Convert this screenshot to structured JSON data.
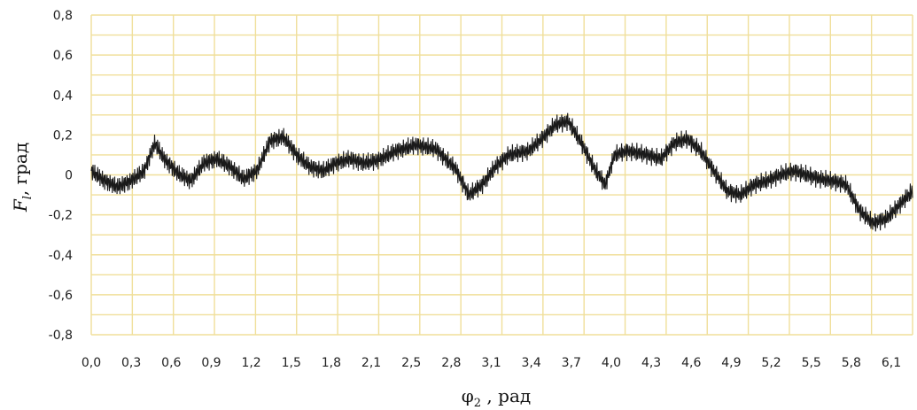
{
  "chart_data": {
    "type": "line",
    "title": "",
    "xlabel": "φ₂ , рад",
    "ylabel": "F_l, град",
    "ylabel_symbol": "F",
    "ylabel_sub": "l",
    "ylabel_rest": ", град",
    "xlabel_symbol": "φ",
    "xlabel_sub": "2",
    "xlabel_rest": " , рад",
    "xlim": [
      0,
      6.2
    ],
    "ylim": [
      -0.8,
      0.8
    ],
    "grid": true,
    "colors": {
      "line": "#1a1a1a",
      "grid": "#f0df9a",
      "background": "#ffffff"
    },
    "x_ticks": [
      0.0,
      0.3,
      0.6,
      0.9,
      1.2,
      1.5,
      1.8,
      2.1,
      2.5,
      2.8,
      3.1,
      3.4,
      3.7,
      4.0,
      4.3,
      4.6,
      4.9,
      5.2,
      5.5,
      5.8,
      6.1
    ],
    "x_tick_labels": [
      "0,0",
      "0,3",
      "0,6",
      "0,9",
      "1,2",
      "1,5",
      "1,8",
      "2,1",
      "2,5",
      "2,8",
      "3,1",
      "3,4",
      "3,7",
      "4,0",
      "4,3",
      "4,6",
      "4,9",
      "5,2",
      "5,5",
      "5,8",
      "6,1"
    ],
    "y_ticks": [
      0.8,
      0.6,
      0.4,
      0.2,
      0,
      -0.2,
      -0.4,
      -0.6,
      -0.8
    ],
    "y_tick_labels": [
      "0,8",
      "0,6",
      "0,4",
      "0,2",
      "0",
      "-0,2",
      "-0,4",
      "-0,6",
      "-0,8"
    ],
    "series": [
      {
        "name": "",
        "oscillation_amplitude": 0.05,
        "points": [
          [
            0.0,
            0.02
          ],
          [
            0.1,
            -0.03
          ],
          [
            0.2,
            -0.06
          ],
          [
            0.3,
            -0.03
          ],
          [
            0.4,
            0.02
          ],
          [
            0.48,
            0.16
          ],
          [
            0.55,
            0.08
          ],
          [
            0.65,
            0.01
          ],
          [
            0.75,
            -0.03
          ],
          [
            0.85,
            0.06
          ],
          [
            0.95,
            0.08
          ],
          [
            1.05,
            0.04
          ],
          [
            1.15,
            -0.02
          ],
          [
            1.25,
            0.02
          ],
          [
            1.35,
            0.17
          ],
          [
            1.45,
            0.19
          ],
          [
            1.55,
            0.1
          ],
          [
            1.65,
            0.04
          ],
          [
            1.75,
            0.02
          ],
          [
            1.85,
            0.06
          ],
          [
            1.95,
            0.08
          ],
          [
            2.05,
            0.06
          ],
          [
            2.15,
            0.07
          ],
          [
            2.3,
            0.12
          ],
          [
            2.45,
            0.15
          ],
          [
            2.6,
            0.13
          ],
          [
            2.75,
            0.03
          ],
          [
            2.85,
            -0.1
          ],
          [
            2.95,
            -0.05
          ],
          [
            3.05,
            0.04
          ],
          [
            3.15,
            0.1
          ],
          [
            3.3,
            0.12
          ],
          [
            3.4,
            0.18
          ],
          [
            3.5,
            0.25
          ],
          [
            3.6,
            0.27
          ],
          [
            3.7,
            0.16
          ],
          [
            3.8,
            0.03
          ],
          [
            3.88,
            -0.05
          ],
          [
            3.95,
            0.1
          ],
          [
            4.05,
            0.12
          ],
          [
            4.2,
            0.1
          ],
          [
            4.3,
            0.08
          ],
          [
            4.4,
            0.16
          ],
          [
            4.5,
            0.18
          ],
          [
            4.6,
            0.12
          ],
          [
            4.7,
            0.02
          ],
          [
            4.8,
            -0.08
          ],
          [
            4.9,
            -0.1
          ],
          [
            5.0,
            -0.05
          ],
          [
            5.1,
            -0.03
          ],
          [
            5.2,
            0.0
          ],
          [
            5.3,
            0.02
          ],
          [
            5.4,
            0.0
          ],
          [
            5.5,
            -0.02
          ],
          [
            5.6,
            -0.03
          ],
          [
            5.7,
            -0.05
          ],
          [
            5.8,
            -0.18
          ],
          [
            5.9,
            -0.24
          ],
          [
            6.0,
            -0.22
          ],
          [
            6.1,
            -0.15
          ],
          [
            6.2,
            -0.08
          ]
        ]
      }
    ]
  }
}
